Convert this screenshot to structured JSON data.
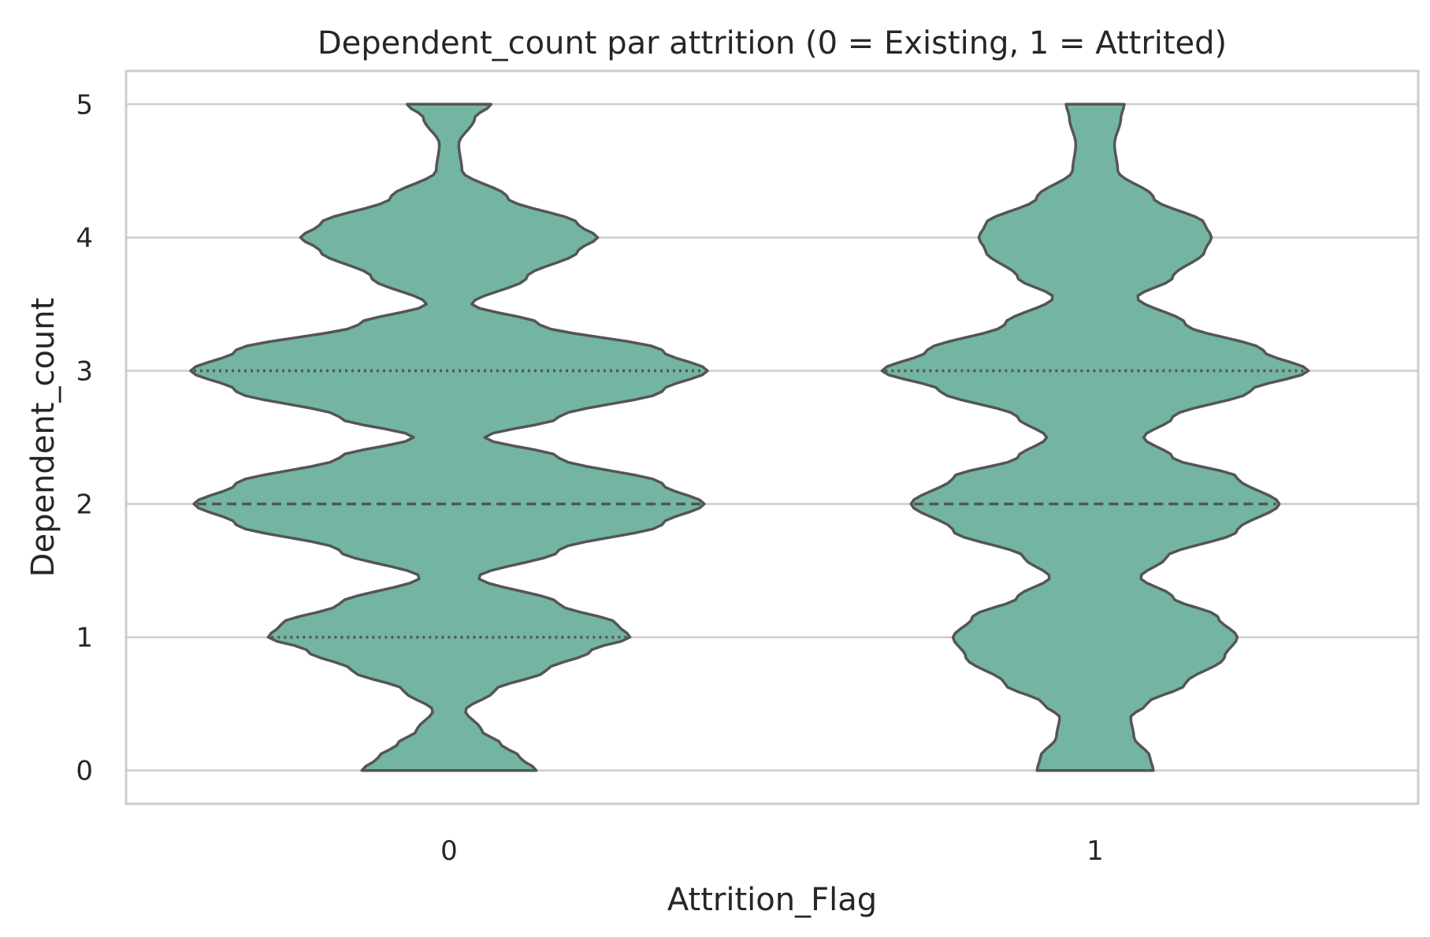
{
  "chart_data": {
    "type": "violin",
    "title": "Dependent_count par attrition (0 = Existing, 1 = Attrited)",
    "xlabel": "Attrition_Flag",
    "ylabel": "Dependent_count",
    "categories": [
      "0",
      "1"
    ],
    "yticks": [
      "0",
      "1",
      "2",
      "3",
      "4",
      "5"
    ],
    "ylim": [
      -0.25,
      5.25
    ],
    "grid": "horizontal",
    "fill_color": "#73b5a2",
    "edge_color": "#555555",
    "violins": [
      {
        "category": "0",
        "quartiles": {
          "q1": 1,
          "median": 2,
          "q3": 3
        },
        "density": {
          "y": [
            0.0,
            0.1,
            0.2,
            0.3,
            0.45,
            0.6,
            0.75,
            0.9,
            1.0,
            1.1,
            1.25,
            1.45,
            1.65,
            1.85,
            2.0,
            2.15,
            2.35,
            2.5,
            2.65,
            2.85,
            3.0,
            3.15,
            3.35,
            3.5,
            3.7,
            3.9,
            4.0,
            4.1,
            4.3,
            4.5,
            4.7,
            4.9,
            5.0
          ],
          "width": [
            0.135,
            0.11,
            0.08,
            0.05,
            0.025,
            0.07,
            0.15,
            0.22,
            0.28,
            0.26,
            0.17,
            0.045,
            0.17,
            0.33,
            0.395,
            0.33,
            0.17,
            0.055,
            0.17,
            0.33,
            0.4,
            0.33,
            0.14,
            0.035,
            0.12,
            0.2,
            0.23,
            0.2,
            0.09,
            0.02,
            0.015,
            0.04,
            0.065
          ]
        }
      },
      {
        "category": "1",
        "quartiles": {
          "q1": null,
          "median": 2,
          "q3": 3
        },
        "density": {
          "y": [
            0.0,
            0.1,
            0.25,
            0.4,
            0.5,
            0.65,
            0.85,
            1.0,
            1.15,
            1.3,
            1.45,
            1.6,
            1.8,
            2.0,
            2.2,
            2.35,
            2.5,
            2.65,
            2.85,
            3.0,
            3.15,
            3.35,
            3.55,
            3.7,
            3.9,
            4.0,
            4.1,
            4.3,
            4.5,
            4.7,
            4.9,
            5.0
          ],
          "width": [
            0.09,
            0.085,
            0.06,
            0.055,
            0.08,
            0.14,
            0.2,
            0.22,
            0.19,
            0.12,
            0.07,
            0.11,
            0.22,
            0.285,
            0.22,
            0.12,
            0.075,
            0.12,
            0.24,
            0.33,
            0.26,
            0.14,
            0.065,
            0.12,
            0.17,
            0.18,
            0.17,
            0.09,
            0.035,
            0.03,
            0.04,
            0.045
          ]
        }
      }
    ]
  }
}
